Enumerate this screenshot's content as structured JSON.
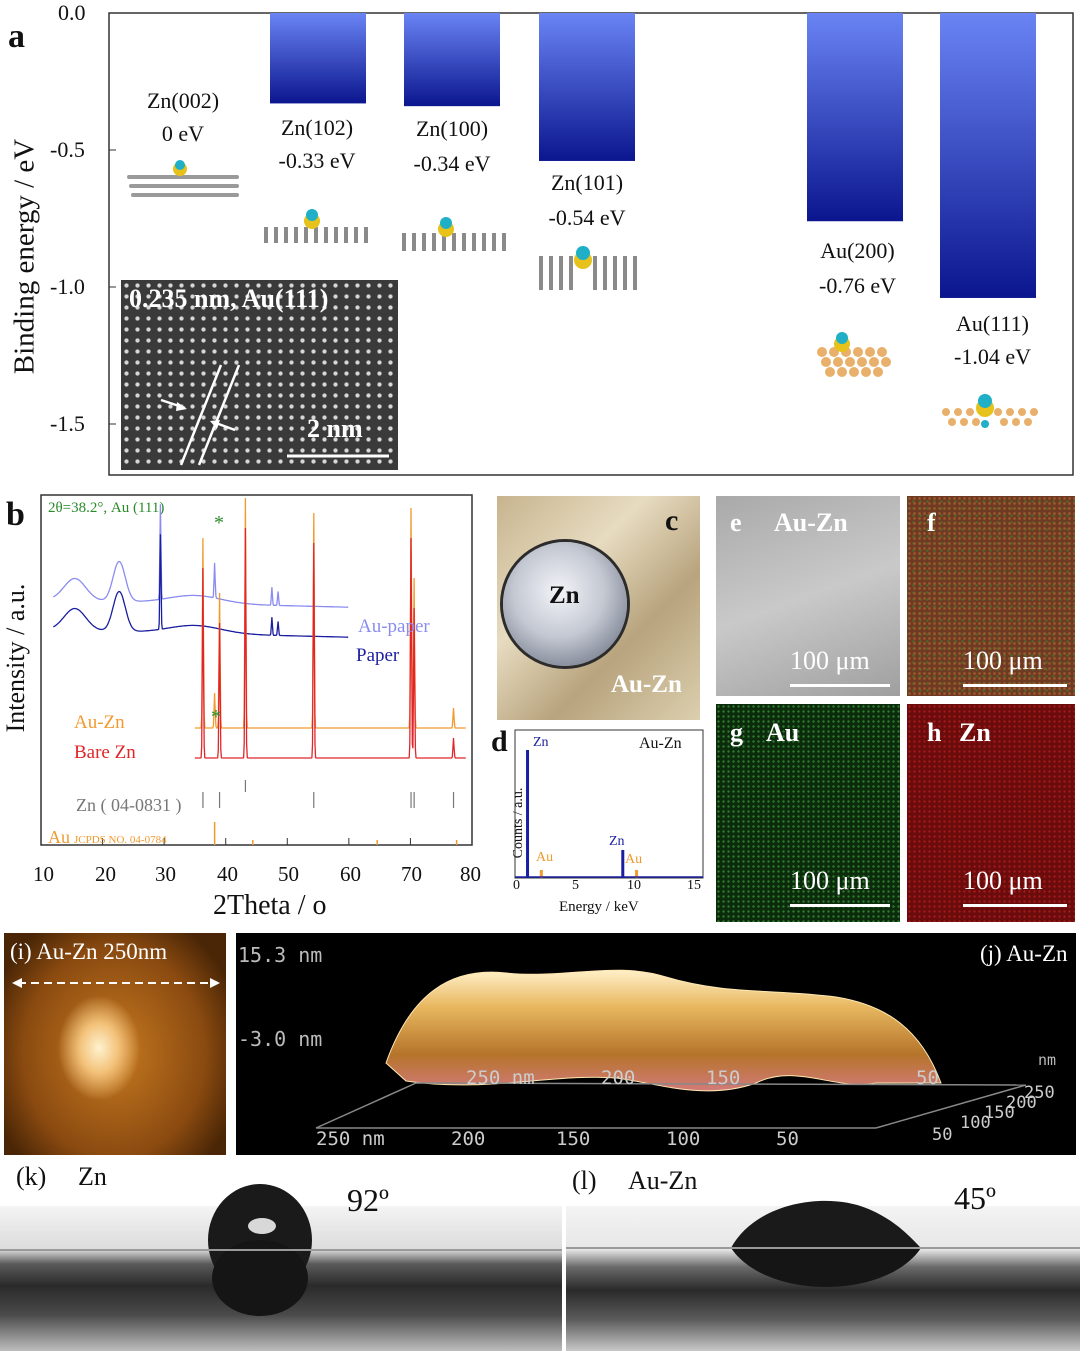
{
  "panel_a": {
    "letter": "a",
    "ylabel": "Binding energy / eV",
    "yticks": [
      "0.0",
      "-0.5",
      "-1.0",
      "-1.5"
    ],
    "inset_label": "0.235 nm, Au(111)",
    "inset_scale": "2 nm",
    "bars": [
      {
        "name": "Zn(002)",
        "energy": "0 eV"
      },
      {
        "name": "Zn(102)",
        "energy": "-0.33 eV"
      },
      {
        "name": "Zn(100)",
        "energy": "-0.34 eV"
      },
      {
        "name": "Zn(101)",
        "energy": "-0.54 eV"
      },
      {
        "name": "Au(200)",
        "energy": "-0.76 eV"
      },
      {
        "name": "Au(111)",
        "energy": "-1.04 eV"
      }
    ]
  },
  "panel_b": {
    "letter": "b",
    "annotation": "2θ=38.2°, Au (111)",
    "ylabel": "Intensity / a.u.",
    "xlabel": "2Theta / o",
    "xticks": [
      "10",
      "20",
      "30",
      "40",
      "50",
      "60",
      "70",
      "80"
    ],
    "legend": [
      "Au-paper",
      "Paper",
      "Au-Zn",
      "Bare Zn"
    ],
    "ref_zn": "Zn ( 04-0831 )",
    "ref_au_a": "Au",
    "ref_au_b": "JCPDS NO. 04-0784"
  },
  "panel_c": {
    "letter": "c",
    "zn_label": "Zn",
    "auzn_label": "Au-Zn"
  },
  "panel_d": {
    "letter": "d",
    "title": "Au-Zn",
    "ylabel": "Counts / a.u.",
    "xlabel": "Energy / keV",
    "xticks": [
      "0",
      "5",
      "10",
      "15"
    ],
    "peak_zn1": "Zn",
    "peak_au1": "Au",
    "peak_zn2": "Zn",
    "peak_au2": "Au"
  },
  "panel_e": {
    "letter": "e",
    "title": "Au-Zn",
    "scale": "100 μm"
  },
  "panel_f": {
    "letter": "f",
    "scale": "100 μm"
  },
  "panel_g": {
    "letter": "g",
    "title": "Au",
    "scale": "100 μm"
  },
  "panel_h": {
    "letter": "h",
    "title": "Zn",
    "scale": "100 μm"
  },
  "panel_i": {
    "label": "(i) Au-Zn 250nm"
  },
  "panel_j": {
    "label": "(j) Au-Zn",
    "z_top": "15.3 nm",
    "z_mid": "-3.0 nm",
    "unit": "nm",
    "axis1": [
      "250 nm",
      "200",
      "150",
      "100",
      "50"
    ],
    "axis2": [
      "250 nm",
      "200",
      "150",
      "50"
    ],
    "axis3": [
      "250",
      "200",
      "150",
      "100",
      "50"
    ]
  },
  "panel_k": {
    "label": "(k)",
    "name": "Zn",
    "angle": "92º"
  },
  "panel_l": {
    "label": "(l)",
    "name": "Au-Zn",
    "angle": "45º"
  },
  "chart_data": [
    {
      "type": "bar",
      "panel": "a",
      "ylabel": "Binding energy / eV",
      "ylim": [
        -1.65,
        0.0
      ],
      "categories": [
        "Zn(002)",
        "Zn(102)",
        "Zn(100)",
        "Zn(101)",
        "Au(200)",
        "Au(111)"
      ],
      "values": [
        0,
        -0.33,
        -0.34,
        -0.54,
        -0.76,
        -1.04
      ]
    },
    {
      "type": "line",
      "panel": "b",
      "xlabel": "2Theta / o",
      "ylabel": "Intensity / a.u.",
      "xlim": [
        10,
        80
      ],
      "series": [
        {
          "name": "Au-paper",
          "peaks_2theta": [
            15.5,
            22.7,
            29.4,
            38.2,
            47.5,
            48.5
          ]
        },
        {
          "name": "Paper",
          "peaks_2theta": [
            15.5,
            22.7,
            29.4,
            47.5,
            48.5
          ]
        },
        {
          "name": "Au-Zn",
          "peaks_2theta": [
            36.3,
            38.2,
            39.0,
            43.2,
            54.3,
            70.1,
            70.6,
            77.0
          ]
        },
        {
          "name": "Bare Zn",
          "peaks_2theta": [
            36.3,
            39.0,
            43.2,
            54.3,
            70.1,
            70.6,
            77.0
          ]
        }
      ]
    },
    {
      "type": "line",
      "panel": "d",
      "xlabel": "Energy / keV",
      "ylabel": "Counts / a.u.",
      "xlim": [
        0,
        15
      ],
      "peaks_kev": [
        {
          "element": "Zn",
          "x": 1.0
        },
        {
          "element": "Au",
          "x": 2.1
        },
        {
          "element": "Zn",
          "x": 8.6
        },
        {
          "element": "Au",
          "x": 9.7
        }
      ]
    }
  ],
  "colors": {
    "bar_top": "#5a76ee",
    "bar_bottom": "#0d1a9c",
    "au_paper": "#8a8cf0",
    "paper": "#1a1ea0",
    "au_zn": "#f29a2e",
    "bare_zn": "#e0262a",
    "annotation_green": "#2a8a2a",
    "au_ref": "#f09a30"
  }
}
